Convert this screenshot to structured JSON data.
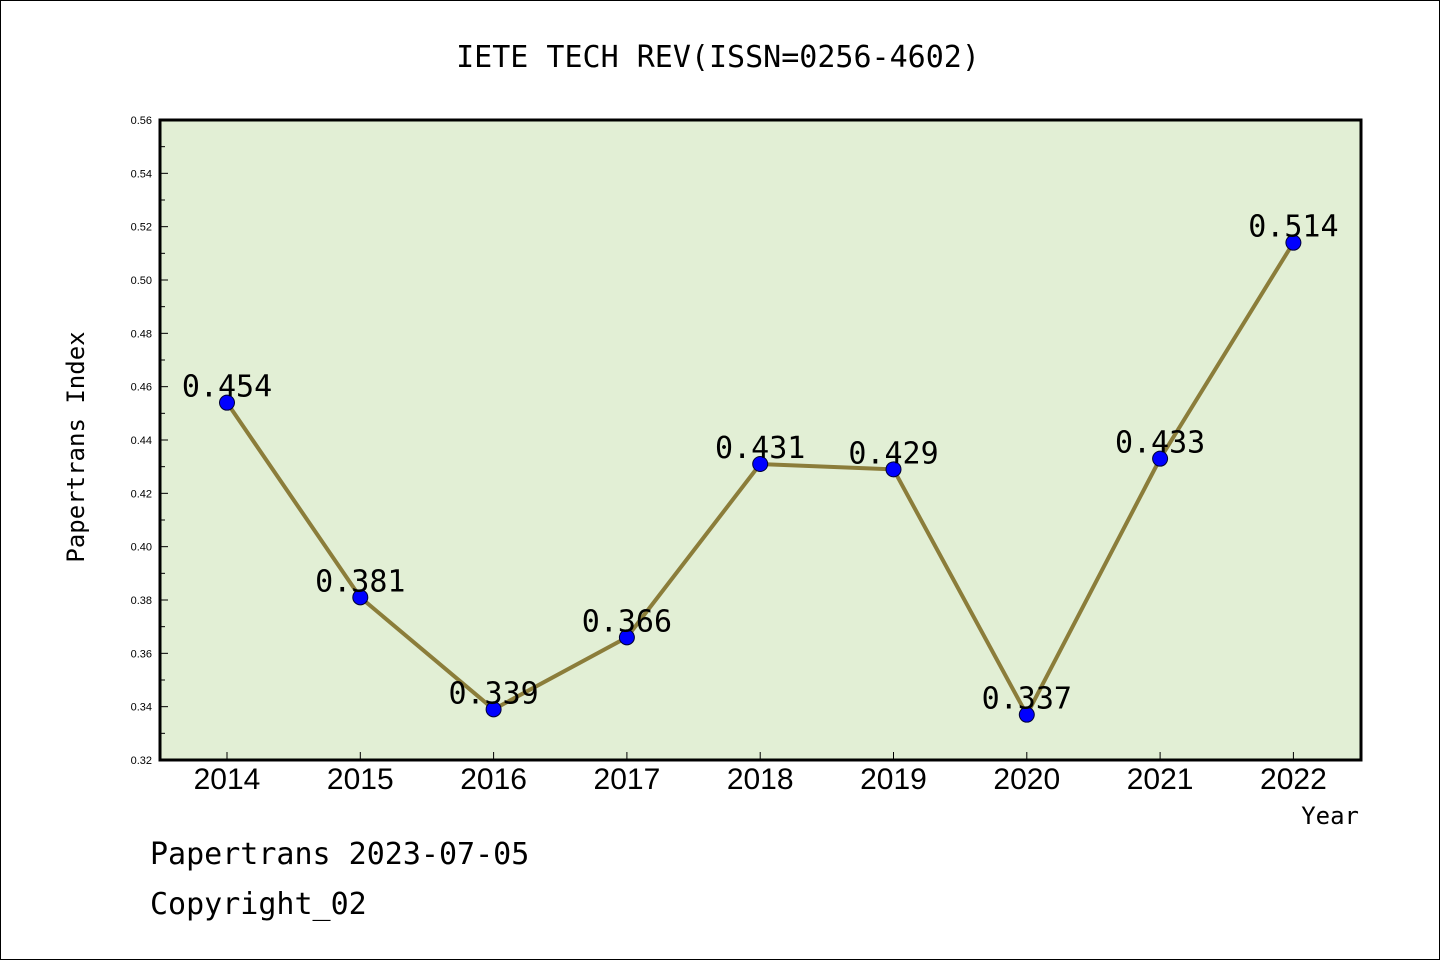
{
  "chart_data": {
    "type": "line",
    "title": "IETE TECH REV(ISSN=0256-4602)",
    "xlabel": "Year",
    "ylabel": "Papertrans Index",
    "categories": [
      "2014",
      "2015",
      "2016",
      "2017",
      "2018",
      "2019",
      "2020",
      "2021",
      "2022"
    ],
    "series": [
      {
        "values": [
          0.454,
          0.381,
          0.339,
          0.366,
          0.431,
          0.429,
          0.337,
          0.433,
          0.514
        ],
        "data_labels": [
          "0.454",
          "0.381",
          "0.339",
          "0.366",
          "0.431",
          "0.429",
          "0.337",
          "0.433",
          "0.514"
        ]
      }
    ],
    "ylim": [
      0.32,
      0.56
    ],
    "yticks": [
      "0.32",
      "0.34",
      "0.36",
      "0.38",
      "0.40",
      "0.42",
      "0.44",
      "0.46",
      "0.48",
      "0.50",
      "0.52",
      "0.54",
      "0.56"
    ],
    "grid": false,
    "legend": "none",
    "colors": {
      "plot_background": "#e2efd5",
      "line": "#8b7d3a",
      "marker": "#0000ff"
    }
  },
  "footer": {
    "line1": "Papertrans 2023-07-05",
    "line2": "Copyright_02"
  }
}
